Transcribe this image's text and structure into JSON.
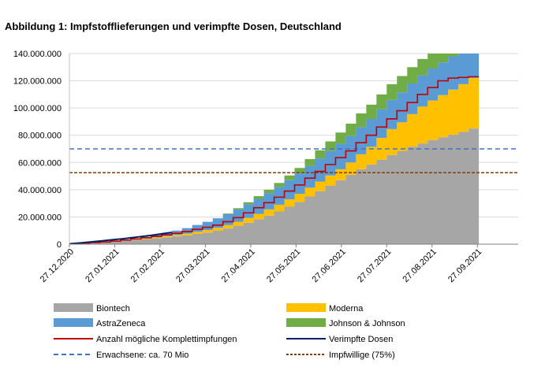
{
  "chart_data": {
    "type": "area",
    "title": "Abbildung 1: Impfstofflieferungen und verimpfte Dosen, Deutschland",
    "xlabel": "",
    "ylabel": "",
    "x_ticks": [
      "27.12.2020",
      "27.01.2021",
      "27.02.2021",
      "27.03.2021",
      "27.04.2021",
      "27.05.2021",
      "27.06.2021",
      "27.07.2021",
      "27.08.2021",
      "27.09.2021"
    ],
    "y_ticks": [
      "0",
      "20.000.000",
      "40.000.000",
      "60.000.000",
      "80.000.000",
      "100.000.000",
      "120.000.000",
      "140.000.000"
    ],
    "ylim": [
      0,
      140000000
    ],
    "x_unit": "weeks since 27.12.2020",
    "weeks": [
      0,
      1,
      2,
      3,
      4,
      5,
      6,
      7,
      8,
      9,
      10,
      11,
      12,
      13,
      14,
      15,
      16,
      17,
      18,
      19,
      20,
      21,
      22,
      23,
      24,
      25,
      26,
      27,
      28,
      29,
      30,
      31,
      32,
      33,
      34,
      35,
      36,
      37,
      38,
      39
    ],
    "series": [
      {
        "name": "Biontech",
        "kind": "stacked-area",
        "color": "#a6a6a6",
        "values": [
          0.4,
          0.8,
          1.2,
          1.6,
          2.1,
          2.6,
          3.1,
          3.7,
          4.3,
          5.0,
          5.7,
          6.5,
          7.5,
          8.5,
          9.8,
          11.5,
          13.5,
          15.8,
          18.3,
          21.0,
          24.0,
          27.5,
          31.0,
          35.0,
          39.0,
          43.0,
          47.0,
          51.0,
          55.0,
          58.5,
          62.0,
          65.5,
          68.5,
          71.5,
          74.0,
          76.5,
          78.5,
          80.5,
          82.5,
          85.0
        ]
      },
      {
        "name": "Moderna",
        "kind": "stacked-area",
        "color": "#ffc000",
        "values": [
          0,
          0,
          0.05,
          0.1,
          0.2,
          0.3,
          0.4,
          0.5,
          0.7,
          0.9,
          1.1,
          1.3,
          1.6,
          1.9,
          2.2,
          2.5,
          3.0,
          3.5,
          4.0,
          4.5,
          5.0,
          5.5,
          6.0,
          6.5,
          7.0,
          7.5,
          8.0,
          9.0,
          11.0,
          13.0,
          16.0,
          19.0,
          21.0,
          24.0,
          27.0,
          29.0,
          31.0,
          33.0,
          35.0,
          37.0
        ]
      },
      {
        "name": "AstraZeneca",
        "kind": "stacked-area",
        "color": "#5b9bd5",
        "values": [
          0,
          0,
          0,
          0,
          0,
          0.3,
          0.7,
          1.2,
          1.8,
          2.5,
          3.2,
          4.0,
          5.0,
          6.0,
          7.0,
          8.0,
          9.0,
          10.0,
          11.0,
          12.0,
          13.0,
          14.0,
          15.0,
          16.0,
          17.0,
          18.0,
          19.0,
          19.5,
          20.0,
          20.5,
          21.0,
          21.5,
          22.0,
          22.5,
          23.0,
          23.5,
          24.0,
          24.5,
          25.0,
          25.5
        ]
      },
      {
        "name": "Johnson & Johnson",
        "kind": "stacked-area",
        "color": "#70ad47",
        "values": [
          0,
          0,
          0,
          0,
          0,
          0,
          0,
          0,
          0,
          0,
          0,
          0,
          0,
          0,
          0,
          0.5,
          1.0,
          1.5,
          2.0,
          2.5,
          3.0,
          3.5,
          4.0,
          5.0,
          6.0,
          7.0,
          8.0,
          9.0,
          10.0,
          10.5,
          11.0,
          11.5,
          12.0,
          12.0,
          12.0,
          12.0,
          12.0,
          12.0,
          12.0,
          12.0
        ]
      },
      {
        "name": "Anzahl mögliche Komplettimpfungen",
        "kind": "step-line",
        "color": "#c00000",
        "values": [
          0.4,
          0.8,
          1.25,
          1.7,
          2.3,
          3.05,
          3.85,
          4.75,
          5.75,
          6.85,
          8.0,
          9.3,
          10.9,
          12.4,
          14.0,
          16.5,
          19.5,
          23.0,
          26.8,
          30.5,
          34.5,
          39.0,
          43.5,
          48.5,
          53.5,
          58.5,
          63.5,
          68.5,
          74.5,
          80.0,
          86.0,
          92.0,
          98.0,
          104.0,
          110.0,
          115.0,
          120.0,
          122.0,
          122.5,
          123.0
        ]
      },
      {
        "name": "Verimpfte Dosen",
        "kind": "line",
        "color": "#002060",
        "weeks": [
          0,
          1,
          2,
          3,
          4,
          5,
          6,
          7,
          8,
          9,
          10
        ],
        "values": [
          0.3,
          0.9,
          1.6,
          2.3,
          3.1,
          3.8,
          4.7,
          5.6,
          6.5,
          7.6,
          8.7
        ]
      },
      {
        "name": "Erwachsene: ca. 70 Mio",
        "kind": "hline",
        "color": "#4472c4",
        "value": 70.0
      },
      {
        "name": "Impfwillige (75%)",
        "kind": "hline",
        "color": "#843c0c",
        "value": 52.5
      }
    ],
    "value_unit_in_series": "Mio",
    "legend": "bottom",
    "grid": true
  }
}
